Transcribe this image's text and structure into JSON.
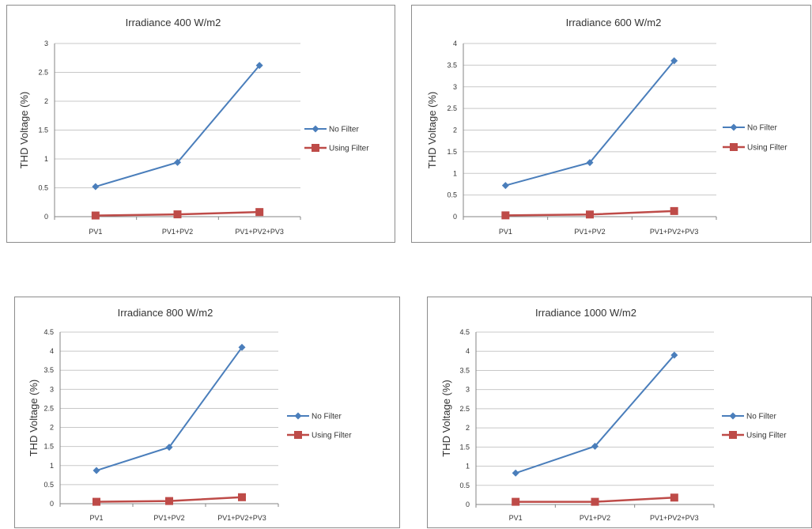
{
  "colors": {
    "no_filter": "#4a7ebb",
    "using_filter": "#be4b48",
    "grid": "#c8c8c8",
    "axis": "#868686"
  },
  "chart_data": [
    {
      "type": "line",
      "title": "Irradiance 400 W/m2",
      "ylabel": "THD Voltage (%)",
      "xlabel": "",
      "categories": [
        "PV1",
        "PV1+PV2",
        "PV1+PV2+PV3"
      ],
      "y_ticks": [
        "0",
        "0.5",
        "1",
        "1.5",
        "2",
        "2.5",
        "3"
      ],
      "ylim": [
        0,
        3
      ],
      "grid": true,
      "legend": "right",
      "series": [
        {
          "name": "No Filter",
          "values": [
            0.52,
            0.94,
            2.62
          ],
          "marker": "diamond"
        },
        {
          "name": "Using Filter",
          "values": [
            0.02,
            0.04,
            0.08
          ],
          "marker": "square"
        }
      ]
    },
    {
      "type": "line",
      "title": "Irradiance 600 W/m2",
      "ylabel": "THD Voltage (%)",
      "xlabel": "",
      "categories": [
        "PV1",
        "PV1+PV2",
        "PV1+PV2+PV3"
      ],
      "y_ticks": [
        "0",
        "0.5",
        "1",
        "1.5",
        "2",
        "2.5",
        "3",
        "3.5",
        "4"
      ],
      "ylim": [
        0,
        4
      ],
      "grid": true,
      "legend": "right",
      "series": [
        {
          "name": "No Filter",
          "values": [
            0.72,
            1.25,
            3.6
          ],
          "marker": "diamond"
        },
        {
          "name": "Using Filter",
          "values": [
            0.03,
            0.05,
            0.13
          ],
          "marker": "square"
        }
      ]
    },
    {
      "type": "line",
      "title": "Irradiance 800 W/m2",
      "ylabel": "THD Voltage (%)",
      "xlabel": "",
      "categories": [
        "PV1",
        "PV1+PV2",
        "PV1+PV2+PV3"
      ],
      "y_ticks": [
        "0",
        "0.5",
        "1",
        "1.5",
        "2",
        "2.5",
        "3",
        "3.5",
        "4",
        "4.5"
      ],
      "ylim": [
        0,
        4.5
      ],
      "grid": true,
      "legend": "right",
      "series": [
        {
          "name": "No Filter",
          "values": [
            0.87,
            1.48,
            4.1
          ],
          "marker": "diamond"
        },
        {
          "name": "Using Filter",
          "values": [
            0.05,
            0.07,
            0.17
          ],
          "marker": "square"
        }
      ]
    },
    {
      "type": "line",
      "title": "Irradiance 1000 W/m2",
      "ylabel": "THD Voltage (%)",
      "xlabel": "",
      "categories": [
        "PV1",
        "PV1+PV2",
        "PV1+PV2+PV3"
      ],
      "y_ticks": [
        "0",
        "0.5",
        "1",
        "1.5",
        "2",
        "2.5",
        "3",
        "3.5",
        "4",
        "4.5"
      ],
      "ylim": [
        0,
        4.5
      ],
      "grid": true,
      "legend": "right",
      "series": [
        {
          "name": "No Filter",
          "values": [
            0.82,
            1.52,
            3.9
          ],
          "marker": "diamond"
        },
        {
          "name": "Using Filter",
          "values": [
            0.07,
            0.07,
            0.18
          ],
          "marker": "square"
        }
      ]
    }
  ]
}
